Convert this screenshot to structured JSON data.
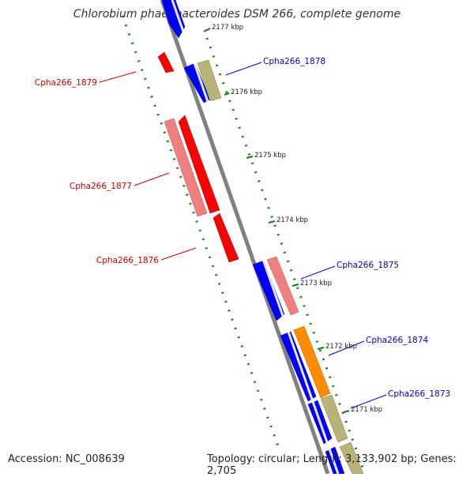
{
  "title": "Chlorobium phaeobacteroides DSM 266, complete genome",
  "footer": {
    "accession": "Accession: NC_008639",
    "summary": "Topology: circular; Length: 3,133,902 bp; Genes: 2,705"
  },
  "ticks": [
    "2177 kbp",
    "2176 kbp",
    "2175 kbp",
    "2174 kbp",
    "2173 kbp",
    "2172 kbp",
    "2171 kbp"
  ],
  "gene_labels": [
    {
      "id": "Cpha266_1878",
      "color": "#0000cc"
    },
    {
      "id": "Cpha266_1879",
      "color": "#cc0000"
    },
    {
      "id": "Cpha266_1877",
      "color": "#cc0000"
    },
    {
      "id": "Cpha266_1876",
      "color": "#cc0000"
    },
    {
      "id": "Cpha266_1875",
      "color": "#0000cc"
    },
    {
      "id": "Cpha266_1874",
      "color": "#0000cc"
    },
    {
      "id": "Cpha266_1873",
      "color": "#0000cc"
    }
  ],
  "colors": {
    "backbone": "#808080",
    "forward_cds": "#0000ff",
    "reverse_cds": "#ff0000",
    "reverse_pink": "#f08080",
    "khaki": "#b8b478",
    "orange": "#ff8c00",
    "gc_dots": "#1a7a1a"
  }
}
